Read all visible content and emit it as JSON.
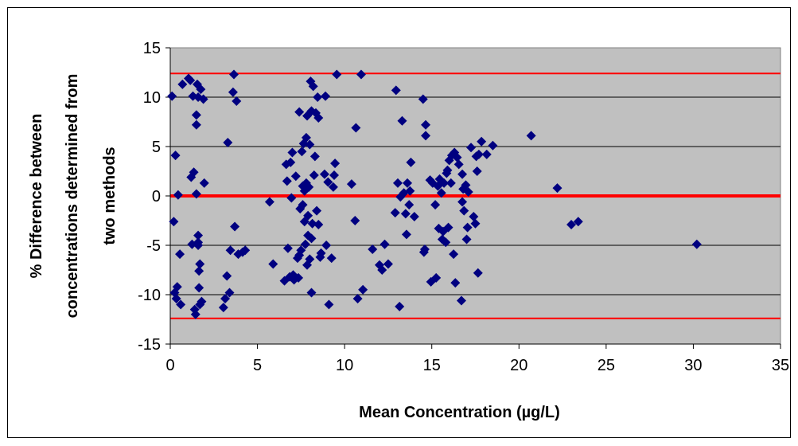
{
  "chart_data": {
    "type": "scatter",
    "xlabel": "Mean Concentration (µg/L)",
    "ylabel_lines": [
      "% Difference between",
      "concentrations determined from",
      "two methods"
    ],
    "xlim": [
      0,
      35
    ],
    "ylim": [
      -15,
      15
    ],
    "x_ticks": [
      0,
      5,
      10,
      15,
      20,
      25,
      30,
      35
    ],
    "y_ticks": [
      -15,
      -10,
      -5,
      0,
      5,
      10,
      15
    ],
    "grid": true,
    "reference_lines": [
      {
        "y": 12.4,
        "kind": "upper-limit",
        "color": "#ff0000"
      },
      {
        "y": 0,
        "kind": "mean",
        "color": "#ff0000"
      },
      {
        "y": -12.4,
        "kind": "lower-limit",
        "color": "#ff0000"
      }
    ],
    "plot_background": "#c0c0c0",
    "marker_color": "#000080",
    "points": [
      [
        0.1,
        10.1
      ],
      [
        0.3,
        4.1
      ],
      [
        0.2,
        -2.6
      ],
      [
        0.25,
        -9.8
      ],
      [
        0.35,
        -10.4
      ],
      [
        0.4,
        -9.2
      ],
      [
        0.45,
        0.1
      ],
      [
        0.55,
        -5.9
      ],
      [
        0.6,
        -11
      ],
      [
        0.7,
        11.3
      ],
      [
        1.05,
        11.9
      ],
      [
        1.15,
        11.7
      ],
      [
        1.2,
        1.9
      ],
      [
        1.25,
        -4.9
      ],
      [
        1.3,
        10.1
      ],
      [
        1.35,
        2.4
      ],
      [
        1.4,
        -11.5
      ],
      [
        1.45,
        -12
      ],
      [
        1.5,
        0.2
      ],
      [
        1.5,
        8.2
      ],
      [
        1.5,
        7.2
      ],
      [
        1.55,
        11.3
      ],
      [
        1.6,
        -4.7
      ],
      [
        1.6,
        -4
      ],
      [
        1.6,
        -5
      ],
      [
        1.65,
        -7.6
      ],
      [
        1.65,
        -9.3
      ],
      [
        1.7,
        -11
      ],
      [
        1.7,
        -6.9
      ],
      [
        1.75,
        10.8
      ],
      [
        1.8,
        -10.7
      ],
      [
        1.9,
        9.8
      ],
      [
        1.95,
        1.3
      ],
      [
        1.6,
        10
      ],
      [
        3.05,
        -11.3
      ],
      [
        3.15,
        -10.4
      ],
      [
        3.25,
        -8.1
      ],
      [
        3.3,
        5.4
      ],
      [
        3.4,
        -9.8
      ],
      [
        3.45,
        -5.5
      ],
      [
        3.6,
        10.5
      ],
      [
        3.65,
        12.3
      ],
      [
        3.7,
        -3.1
      ],
      [
        3.8,
        9.6
      ],
      [
        3.9,
        -5.9
      ],
      [
        4.15,
        -5.7
      ],
      [
        4.3,
        -5.5
      ],
      [
        5.7,
        -0.6
      ],
      [
        5.9,
        -6.9
      ],
      [
        6.55,
        -8.6
      ],
      [
        6.65,
        3.2
      ],
      [
        6.7,
        1.5
      ],
      [
        6.75,
        -5.3
      ],
      [
        6.85,
        -8.2
      ],
      [
        6.9,
        3.4
      ],
      [
        6.95,
        -0.2
      ],
      [
        7,
        4.4
      ],
      [
        7.05,
        -8
      ],
      [
        7.1,
        -8.5
      ],
      [
        7.2,
        2
      ],
      [
        7.3,
        -6.3
      ],
      [
        7.35,
        -8.3
      ],
      [
        7.4,
        8.5
      ],
      [
        7.4,
        -6
      ],
      [
        7.5,
        -5.5
      ],
      [
        7.45,
        -1.3
      ],
      [
        7.55,
        4.5
      ],
      [
        7.6,
        1
      ],
      [
        7.6,
        -0.9
      ],
      [
        7.65,
        5.3
      ],
      [
        7.7,
        0.5
      ],
      [
        7.7,
        -2.6
      ],
      [
        7.75,
        -4.9
      ],
      [
        7.8,
        5.9
      ],
      [
        7.8,
        1.3
      ],
      [
        7.85,
        -7
      ],
      [
        7.85,
        8.1
      ],
      [
        7.9,
        -2
      ],
      [
        7.95,
        0.9
      ],
      [
        7.9,
        -4
      ],
      [
        8,
        5.2
      ],
      [
        8,
        -6.4
      ],
      [
        8.05,
        11.6
      ],
      [
        8.1,
        -9.8
      ],
      [
        8.1,
        8.6
      ],
      [
        8.1,
        -4.3
      ],
      [
        8.15,
        -2.8
      ],
      [
        8.2,
        11.1
      ],
      [
        8.25,
        2.1
      ],
      [
        8.3,
        4
      ],
      [
        8.35,
        8.4
      ],
      [
        8.4,
        -1.5
      ],
      [
        8.45,
        10
      ],
      [
        8.5,
        -2.9
      ],
      [
        8.5,
        7.9
      ],
      [
        8.6,
        -6.2
      ],
      [
        8.65,
        -5.8
      ],
      [
        8.85,
        2.2
      ],
      [
        8.9,
        10.1
      ],
      [
        8.95,
        -5
      ],
      [
        9.05,
        1.4
      ],
      [
        9.1,
        -11
      ],
      [
        9.25,
        -6.3
      ],
      [
        9.35,
        0.9
      ],
      [
        9.4,
        2.1
      ],
      [
        9.45,
        3.3
      ],
      [
        9.55,
        12.3
      ],
      [
        10.4,
        1.2
      ],
      [
        10.6,
        -2.5
      ],
      [
        10.65,
        6.9
      ],
      [
        10.75,
        -10.4
      ],
      [
        10.95,
        12.3
      ],
      [
        11.05,
        -9.5
      ],
      [
        11.6,
        -5.4
      ],
      [
        12,
        -7
      ],
      [
        12.15,
        -7.5
      ],
      [
        12.3,
        -4.9
      ],
      [
        12.5,
        -6.9
      ],
      [
        12.9,
        -1.7
      ],
      [
        12.95,
        10.7
      ],
      [
        13.05,
        1.3
      ],
      [
        13.15,
        -11.2
      ],
      [
        13.2,
        -0.1
      ],
      [
        13.3,
        7.6
      ],
      [
        13.4,
        0.3
      ],
      [
        13.5,
        -1.8
      ],
      [
        13.55,
        -3.9
      ],
      [
        13.6,
        1.3
      ],
      [
        13.7,
        -0.9
      ],
      [
        13.75,
        0.5
      ],
      [
        13.8,
        3.4
      ],
      [
        14,
        -2.1
      ],
      [
        14.5,
        9.8
      ],
      [
        14.55,
        -5.7
      ],
      [
        14.6,
        -5.4
      ],
      [
        14.65,
        6.1
      ],
      [
        14.65,
        7.2
      ],
      [
        14.9,
        1.6
      ],
      [
        14.95,
        -8.7
      ],
      [
        15.05,
        1.3
      ],
      [
        15.2,
        -0.9
      ],
      [
        15.25,
        -8.3
      ],
      [
        15.35,
        1
      ],
      [
        15.4,
        -3.3
      ],
      [
        15.45,
        1.7
      ],
      [
        15.55,
        0.3
      ],
      [
        15.6,
        -4.4
      ],
      [
        15.7,
        1.3
      ],
      [
        15.65,
        -3.6
      ],
      [
        15.8,
        -4.7
      ],
      [
        15.85,
        2.3
      ],
      [
        15.9,
        2.6
      ],
      [
        15.95,
        -3.2
      ],
      [
        16,
        3.6
      ],
      [
        16.1,
        1.3
      ],
      [
        16.15,
        4.1
      ],
      [
        16.25,
        -5.9
      ],
      [
        16.3,
        4.4
      ],
      [
        16.35,
        -8.8
      ],
      [
        16.45,
        3.9
      ],
      [
        16.55,
        3.2
      ],
      [
        16.7,
        -10.6
      ],
      [
        16.75,
        -0.6
      ],
      [
        16.75,
        2.2
      ],
      [
        16.8,
        0.7
      ],
      [
        16.85,
        -1.5
      ],
      [
        16.95,
        1.1
      ],
      [
        17,
        -4.4
      ],
      [
        17.05,
        -3.2
      ],
      [
        17.1,
        0.4
      ],
      [
        17.25,
        4.9
      ],
      [
        17.4,
        -2.1
      ],
      [
        17.5,
        -2.8
      ],
      [
        17.55,
        4
      ],
      [
        17.6,
        2.5
      ],
      [
        17.65,
        -7.8
      ],
      [
        17.7,
        4.2
      ],
      [
        17.85,
        5.5
      ],
      [
        18.15,
        4.2
      ],
      [
        18.5,
        5.1
      ],
      [
        20.7,
        6.1
      ],
      [
        22.2,
        0.8
      ],
      [
        23,
        -2.9
      ],
      [
        23.4,
        -2.6
      ],
      [
        30.2,
        -4.9
      ]
    ]
  }
}
